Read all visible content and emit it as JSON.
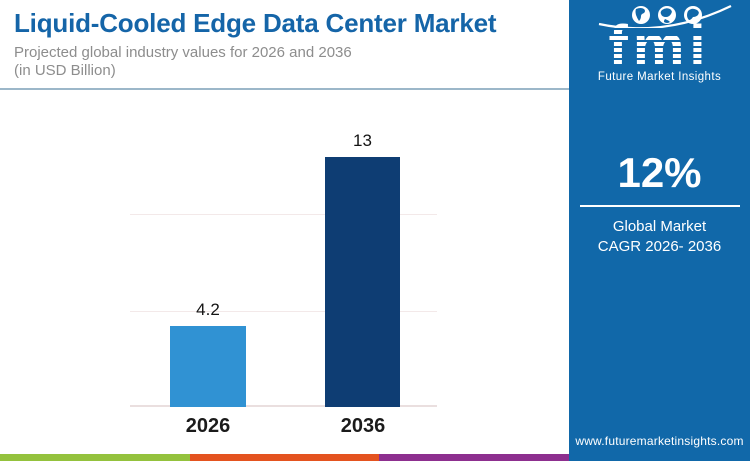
{
  "header": {
    "title": "Liquid-Cooled Edge Data Center Market",
    "subtitle_line1": "Projected global industry values for 2026 and 2036",
    "subtitle_line2": "(in USD Billion)"
  },
  "chart_data": {
    "type": "bar",
    "title": "Liquid-Cooled Edge Data Center Market",
    "subtitle": "Projected global industry values for 2026 and 2036 (in USD Billion)",
    "categories": [
      "2026",
      "2036"
    ],
    "values": [
      4.2,
      13
    ],
    "unit": "USD Billion",
    "bar_colors": [
      "#3092d3",
      "#0e3d73"
    ],
    "ylim": [
      0,
      15.5
    ],
    "gridline_values": [
      5,
      10
    ],
    "grid": true,
    "legend_position": "none",
    "xlabel": "",
    "ylabel": ""
  },
  "sidebar": {
    "logo_text": "fmi",
    "logo_tagline": "Future Market Insights",
    "stat_value": "12%",
    "stat_label_line1": "Global Market",
    "stat_label_line2": "CAGR 2026- 2036",
    "website": "www.futuremarketinsights.com",
    "background_color": "#1168a9"
  },
  "footer": {
    "stripe_colors": [
      "#94c23d",
      "#e4531f",
      "#8d2f8f"
    ]
  }
}
